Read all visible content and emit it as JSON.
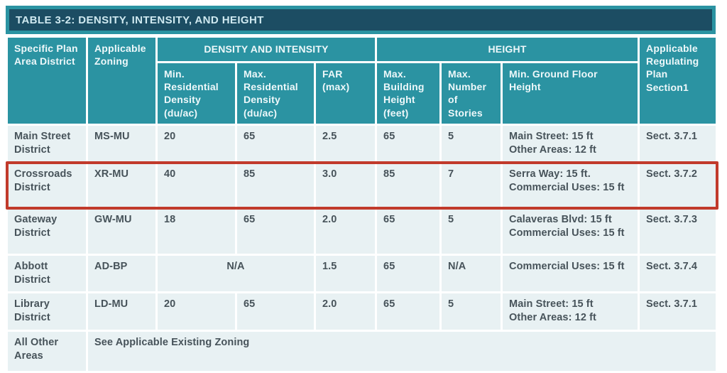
{
  "title": "TABLE 3-2: DENSITY, INTENSITY, AND HEIGHT",
  "header": {
    "specific_plan": "Specific Plan Area District",
    "applicable_zoning": "Applicable Zoning",
    "group_density": "DENSITY AND INTENSITY",
    "group_height": "HEIGHT",
    "min_res_density": "Min. Residential Density (du/ac)",
    "max_res_density": "Max. Residential Density (du/ac)",
    "far": "FAR (max)",
    "max_building_height": "Max. Building Height (feet)",
    "max_stories": "Max. Number of Stories",
    "min_ground_floor": "Min. Ground Floor Height",
    "reg_plan_section": "Applicable Regulating Plan Section1"
  },
  "rows": [
    {
      "district": "Main Street District",
      "zoning": "MS-MU",
      "min_density": "20",
      "max_density": "65",
      "far": "2.5",
      "max_height": "65",
      "max_stories": "5",
      "ground_floor": "Main Street: 15 ft\nOther Areas: 12 ft",
      "section": "Sect. 3.7.1",
      "highlighted": false
    },
    {
      "district": "Crossroads District",
      "zoning": "XR-MU",
      "min_density": "40",
      "max_density": "85",
      "far": "3.0",
      "max_height": "85",
      "max_stories": "7",
      "ground_floor": "Serra Way: 15 ft.\nCommercial Uses: 15 ft",
      "section": "Sect. 3.7.2",
      "highlighted": true
    },
    {
      "district": "Gateway District",
      "zoning": "GW-MU",
      "min_density": "18",
      "max_density": "65",
      "far": "2.0",
      "max_height": "65",
      "max_stories": "5",
      "ground_floor": "Calaveras Blvd: 15 ft\nCommercial Uses: 15 ft",
      "section": "Sect.  3.7.3",
      "highlighted": false
    },
    {
      "district": "Abbott District",
      "zoning": "AD-BP",
      "combined_density": "N/A",
      "far": "1.5",
      "max_height": "65",
      "max_stories": "N/A",
      "ground_floor": "Commercial Uses: 15 ft",
      "section": "Sect.  3.7.4",
      "highlighted": false
    },
    {
      "district": "Library District",
      "zoning": "LD-MU",
      "min_density": "20",
      "max_density": "65",
      "far": "2.0",
      "max_height": "65",
      "max_stories": "5",
      "ground_floor": "Main Street: 15 ft\nOther Areas: 12 ft",
      "section": "Sect.  3.7.1",
      "highlighted": false
    },
    {
      "district": "All Other Areas",
      "note": "See Applicable Existing Zoning",
      "highlighted": false
    }
  ],
  "colors": {
    "title_bar_bg": "#1c4d63",
    "header_teal": "#2b93a2",
    "row_bg": "#e8f1f3",
    "body_text": "#47535a",
    "highlight_red": "#c13a2b",
    "gridline": "#ffffff"
  }
}
